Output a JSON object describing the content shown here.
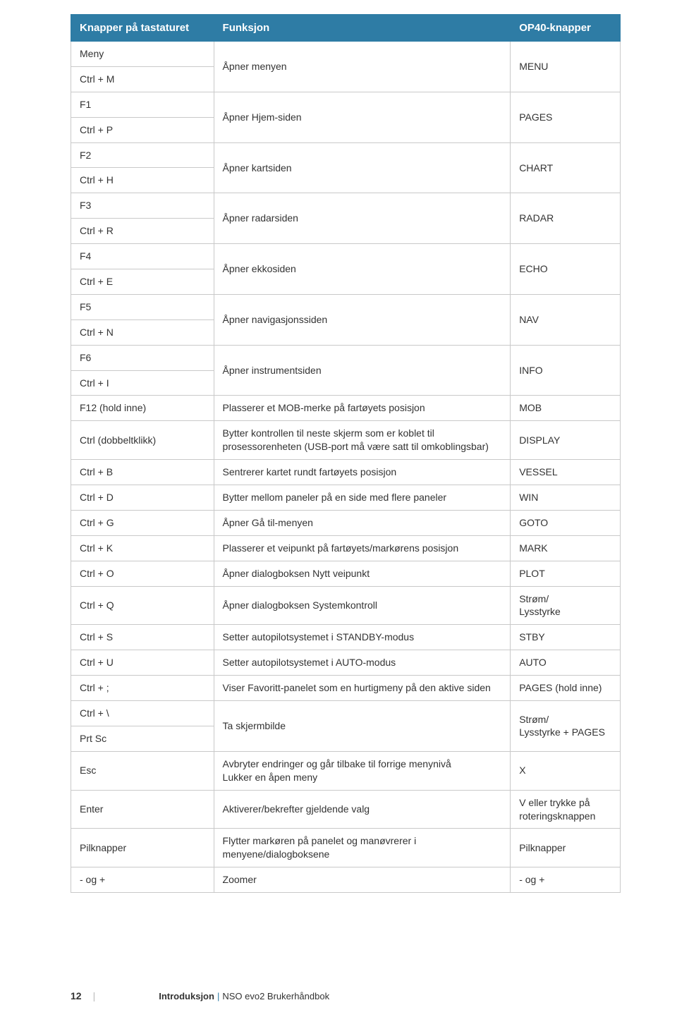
{
  "header": {
    "c1": "Knapper på tastaturet",
    "c2": "Funksjon",
    "c3": "OP40-knapper"
  },
  "rows": [
    {
      "type": "pair",
      "k1": "Meny",
      "k2": "Ctrl + M",
      "fn": "Åpner menyen",
      "op": "MENU"
    },
    {
      "type": "pair",
      "k1": "F1",
      "k2": "Ctrl + P",
      "fn": "Åpner Hjem-siden",
      "op": "PAGES"
    },
    {
      "type": "pair",
      "k1": "F2",
      "k2": "Ctrl + H",
      "fn": "Åpner kartsiden",
      "op": "CHART"
    },
    {
      "type": "pair",
      "k1": "F3",
      "k2": "Ctrl + R",
      "fn": "Åpner radarsiden",
      "op": "RADAR"
    },
    {
      "type": "pair",
      "k1": "F4",
      "k2": "Ctrl + E",
      "fn": "Åpner ekkosiden",
      "op": "ECHO"
    },
    {
      "type": "pair",
      "k1": "F5",
      "k2": "Ctrl + N",
      "fn": "Åpner navigasjonssiden",
      "op": "NAV"
    },
    {
      "type": "pair",
      "k1": "F6",
      "k2": "Ctrl + I",
      "fn": "Åpner instrumentsiden",
      "op": "INFO"
    },
    {
      "type": "single",
      "k": "F12 (hold inne)",
      "fn": "Plasserer et MOB-merke på fartøyets posisjon",
      "op": "MOB"
    },
    {
      "type": "single",
      "k": "Ctrl (dobbeltklikk)",
      "fn": "Bytter kontrollen til neste skjerm som er koblet til prosessorenheten (USB-port må være satt til omkoblingsbar)",
      "op": "DISPLAY"
    },
    {
      "type": "single",
      "k": "Ctrl + B",
      "fn": "Sentrerer kartet rundt fartøyets posisjon",
      "op": "VESSEL"
    },
    {
      "type": "single",
      "k": "Ctrl + D",
      "fn": "Bytter mellom paneler på en side med flere paneler",
      "op": "WIN"
    },
    {
      "type": "single",
      "k": "Ctrl + G",
      "fn": "Åpner Gå til-menyen",
      "op": "GOTO"
    },
    {
      "type": "single",
      "k": "Ctrl + K",
      "fn": "Plasserer et veipunkt på fartøyets/markørens posisjon",
      "op": "MARK"
    },
    {
      "type": "single",
      "k": "Ctrl + O",
      "fn": "Åpner dialogboksen Nytt veipunkt",
      "op": "PLOT"
    },
    {
      "type": "single",
      "k": "Ctrl + Q",
      "fn": "Åpner dialogboksen Systemkontroll",
      "op": "Strøm/\nLysstyrke"
    },
    {
      "type": "single",
      "k": "Ctrl + S",
      "fn": "Setter autopilotsystemet i STANDBY-modus",
      "op": "STBY"
    },
    {
      "type": "single",
      "k": "Ctrl + U",
      "fn": "Setter autopilotsystemet i AUTO-modus",
      "op": "AUTO"
    },
    {
      "type": "single",
      "k": "Ctrl + ;",
      "fn": "Viser Favoritt-panelet som en hurtigmeny på den aktive siden",
      "op": "PAGES (hold inne)"
    },
    {
      "type": "pair",
      "k1": "Ctrl + \\",
      "k2": "Prt Sc",
      "fn": "Ta skjermbilde",
      "op": "Strøm/\nLysstyrke + PAGES"
    },
    {
      "type": "single",
      "k": "Esc",
      "fn": "Avbryter endringer og går tilbake til forrige menynivå\nLukker en åpen meny",
      "op": "X"
    },
    {
      "type": "single",
      "k": "Enter",
      "fn": "Aktiverer/bekrefter gjeldende valg",
      "op": "V eller trykke på roteringsknappen"
    },
    {
      "type": "single",
      "k": "Pilknapper",
      "fn": "Flytter markøren på panelet og manøvrerer i menyene/dialogboksene",
      "op": "Pilknapper"
    },
    {
      "type": "single",
      "k": "- og +",
      "fn": "Zoomer",
      "op": "- og +"
    }
  ],
  "footer": {
    "page_num": "12",
    "separator": "|",
    "section": "Introduksjon",
    "divider": "|",
    "doc": "NSO evo2 Brukerhåndbok"
  }
}
